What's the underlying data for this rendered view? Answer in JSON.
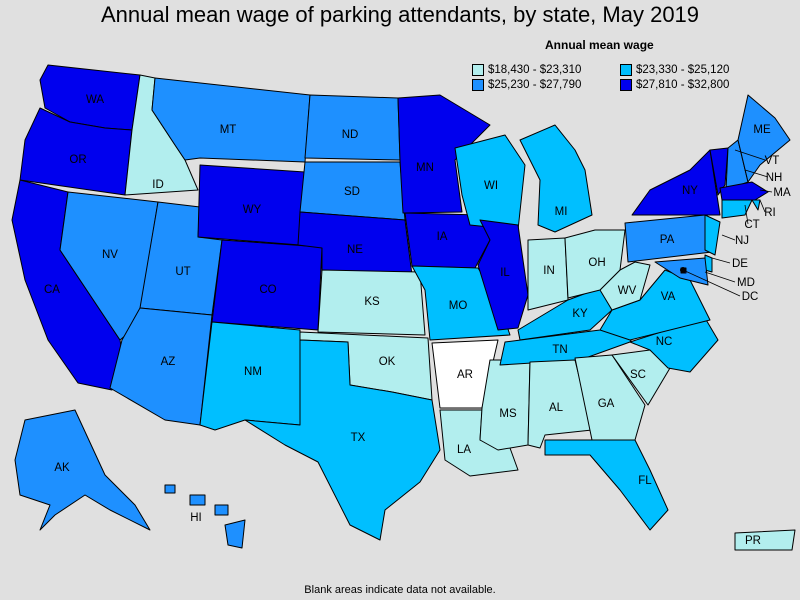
{
  "title": "Annual mean wage of parking attendants, by state, May 2019",
  "legend": {
    "title": "Annual mean wage",
    "bins": [
      {
        "label": "$18,430 - $23,310",
        "color": "#b2eeee"
      },
      {
        "label": "$23,330 - $25,120",
        "color": "#00bfff"
      },
      {
        "label": "$25,230 - $27,790",
        "color": "#1e90ff"
      },
      {
        "label": "$27,810 - $32,800",
        "color": "#0000ee"
      }
    ]
  },
  "no_data_color": "#ffffff",
  "footnote": "Blank areas indicate data not available.",
  "states": [
    {
      "abbr": "WA",
      "bin": 3
    },
    {
      "abbr": "OR",
      "bin": 3
    },
    {
      "abbr": "CA",
      "bin": 3
    },
    {
      "abbr": "ID",
      "bin": 0
    },
    {
      "abbr": "NV",
      "bin": 2
    },
    {
      "abbr": "UT",
      "bin": 2
    },
    {
      "abbr": "AZ",
      "bin": 2
    },
    {
      "abbr": "MT",
      "bin": 2
    },
    {
      "abbr": "WY",
      "bin": 3
    },
    {
      "abbr": "CO",
      "bin": 3
    },
    {
      "abbr": "NM",
      "bin": 1
    },
    {
      "abbr": "ND",
      "bin": 2
    },
    {
      "abbr": "SD",
      "bin": 2
    },
    {
      "abbr": "NE",
      "bin": 3
    },
    {
      "abbr": "KS",
      "bin": 0
    },
    {
      "abbr": "OK",
      "bin": 0
    },
    {
      "abbr": "TX",
      "bin": 1
    },
    {
      "abbr": "MN",
      "bin": 3
    },
    {
      "abbr": "IA",
      "bin": 3
    },
    {
      "abbr": "MO",
      "bin": 1
    },
    {
      "abbr": "AR",
      "bin": null
    },
    {
      "abbr": "LA",
      "bin": 0
    },
    {
      "abbr": "WI",
      "bin": 1
    },
    {
      "abbr": "IL",
      "bin": 3
    },
    {
      "abbr": "MS",
      "bin": 0
    },
    {
      "abbr": "MI",
      "bin": 1
    },
    {
      "abbr": "IN",
      "bin": 0
    },
    {
      "abbr": "KY",
      "bin": 1
    },
    {
      "abbr": "TN",
      "bin": 1
    },
    {
      "abbr": "AL",
      "bin": 0
    },
    {
      "abbr": "GA",
      "bin": 0
    },
    {
      "abbr": "FL",
      "bin": 1
    },
    {
      "abbr": "SC",
      "bin": 0
    },
    {
      "abbr": "NC",
      "bin": 1
    },
    {
      "abbr": "VA",
      "bin": 1
    },
    {
      "abbr": "WV",
      "bin": 0
    },
    {
      "abbr": "OH",
      "bin": 0
    },
    {
      "abbr": "PA",
      "bin": 2
    },
    {
      "abbr": "NY",
      "bin": 3
    },
    {
      "abbr": "VT",
      "bin": 3
    },
    {
      "abbr": "NH",
      "bin": 2
    },
    {
      "abbr": "ME",
      "bin": 2
    },
    {
      "abbr": "MA",
      "bin": 3
    },
    {
      "abbr": "RI",
      "bin": 1
    },
    {
      "abbr": "CT",
      "bin": 1
    },
    {
      "abbr": "NJ",
      "bin": 1
    },
    {
      "abbr": "DE",
      "bin": 1
    },
    {
      "abbr": "MD",
      "bin": 2
    },
    {
      "abbr": "DC",
      "bin": 3
    },
    {
      "abbr": "AK",
      "bin": 2
    },
    {
      "abbr": "HI",
      "bin": 2
    },
    {
      "abbr": "PR",
      "bin": 0
    }
  ]
}
